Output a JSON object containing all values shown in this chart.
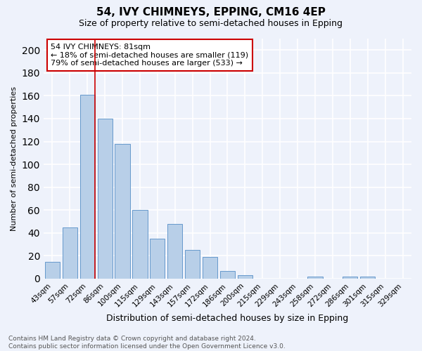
{
  "title": "54, IVY CHIMNEYS, EPPING, CM16 4EP",
  "subtitle": "Size of property relative to semi-detached houses in Epping",
  "xlabel": "Distribution of semi-detached houses by size in Epping",
  "ylabel": "Number of semi-detached properties",
  "categories": [
    "43sqm",
    "57sqm",
    "72sqm",
    "86sqm",
    "100sqm",
    "115sqm",
    "129sqm",
    "143sqm",
    "157sqm",
    "172sqm",
    "186sqm",
    "200sqm",
    "215sqm",
    "229sqm",
    "243sqm",
    "258sqm",
    "272sqm",
    "286sqm",
    "301sqm",
    "315sqm",
    "329sqm"
  ],
  "values": [
    15,
    45,
    161,
    140,
    118,
    60,
    35,
    48,
    25,
    19,
    7,
    3,
    0,
    0,
    0,
    2,
    0,
    2,
    2,
    0,
    0
  ],
  "bar_color": "#b8cfe8",
  "bar_edge_color": "#6699cc",
  "highlight_index": 2,
  "highlight_line_color": "#cc0000",
  "annotation_line1": "54 IVY CHIMNEYS: 81sqm",
  "annotation_line2": "← 18% of semi-detached houses are smaller (119)",
  "annotation_line3": "79% of semi-detached houses are larger (533) →",
  "annotation_box_color": "#ffffff",
  "annotation_box_edge": "#cc0000",
  "ylim": [
    0,
    210
  ],
  "yticks": [
    0,
    20,
    40,
    60,
    80,
    100,
    120,
    140,
    160,
    180,
    200
  ],
  "footer_text": "Contains HM Land Registry data © Crown copyright and database right 2024.\nContains public sector information licensed under the Open Government Licence v3.0.",
  "background_color": "#eef2fb",
  "grid_color": "#ffffff",
  "title_fontsize": 11,
  "subtitle_fontsize": 9,
  "xlabel_fontsize": 9,
  "ylabel_fontsize": 8,
  "tick_fontsize": 7.5,
  "annotation_fontsize": 8,
  "footer_fontsize": 6.5
}
